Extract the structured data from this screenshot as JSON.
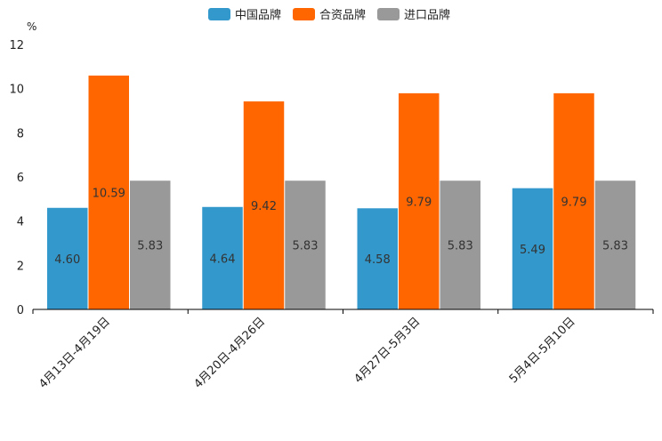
{
  "chart_data": {
    "type": "bar",
    "title": "",
    "unit": "%",
    "categories": [
      "4月13日-4月19日",
      "4月20日-4月26日",
      "4月27日-5月3日",
      "5月4日-5月10日"
    ],
    "series": [
      {
        "name": "中国品牌",
        "color": "#3399cc",
        "values": [
          4.6,
          4.64,
          4.58,
          5.49
        ],
        "labels": [
          "4.60",
          "4.64",
          "4.58",
          "5.49"
        ]
      },
      {
        "name": "合资品牌",
        "color": "#ff6600",
        "values": [
          10.59,
          9.42,
          9.79,
          9.79
        ],
        "labels": [
          "10.59",
          "9.42",
          "9.79",
          "9.79"
        ]
      },
      {
        "name": "进口品牌",
        "color": "#999999",
        "values": [
          5.83,
          5.83,
          5.83,
          5.83
        ],
        "labels": [
          "5.83",
          "5.83",
          "5.83",
          "5.83"
        ]
      }
    ],
    "ylim": [
      0,
      12
    ],
    "yticks": [
      "0",
      "2",
      "4",
      "6",
      "8",
      "10",
      "12"
    ],
    "legend_position": "top-center"
  }
}
